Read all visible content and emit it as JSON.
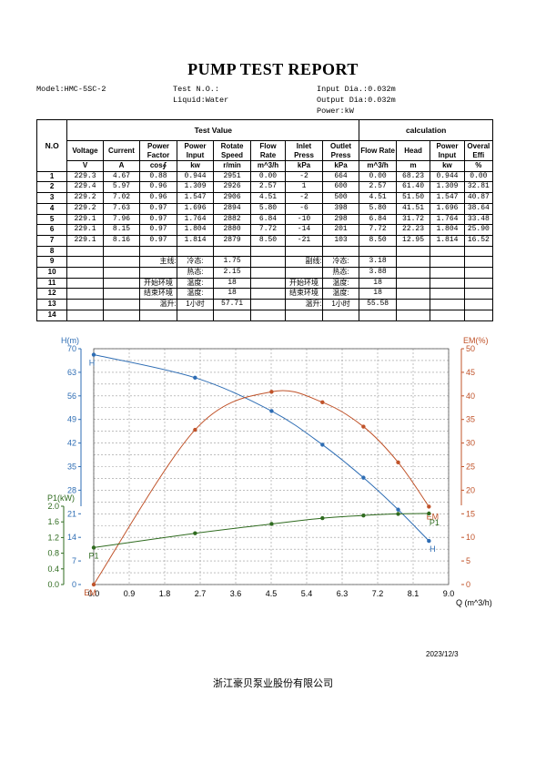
{
  "report": {
    "title": "PUMP TEST REPORT",
    "model": "Model:HMC-5SC-2",
    "test_no": "Test N.O.:",
    "liquid": "Liquid:Water",
    "input_dia": "Input Dia.:0.032m",
    "output_dia": "Output Dia:0.032m",
    "power_unit": "Power:kW"
  },
  "table": {
    "no_header": "N.O",
    "test_value_header": "Test Value",
    "calc_header": "calculation",
    "col_names": [
      "Voltage",
      "Current",
      "Power Factor",
      "Power Input",
      "Rotate Speed",
      "Flow Rate",
      "Inlet Press",
      "Outlet Press",
      "Flow Rate",
      "Head",
      "Power Input",
      "Overal Effi"
    ],
    "col_units": [
      "V",
      "A",
      "cos∮",
      "kw",
      "r/min",
      "m^3/h",
      "kPa",
      "kPa",
      "m^3/h",
      "m",
      "kw",
      "%"
    ],
    "rows": [
      [
        "1",
        "229.3",
        "4.67",
        "0.88",
        "0.944",
        "2951",
        "0.00",
        "-2",
        "664",
        "0.00",
        "68.23",
        "0.944",
        "0.00"
      ],
      [
        "2",
        "229.4",
        "5.97",
        "0.96",
        "1.309",
        "2926",
        "2.57",
        "1",
        "600",
        "2.57",
        "61.40",
        "1.309",
        "32.81"
      ],
      [
        "3",
        "229.2",
        "7.02",
        "0.96",
        "1.547",
        "2906",
        "4.51",
        "-2",
        "500",
        "4.51",
        "51.50",
        "1.547",
        "40.87"
      ],
      [
        "4",
        "229.2",
        "7.63",
        "0.97",
        "1.696",
        "2894",
        "5.80",
        "-6",
        "398",
        "5.80",
        "41.51",
        "1.696",
        "38.64"
      ],
      [
        "5",
        "229.1",
        "7.96",
        "0.97",
        "1.764",
        "2882",
        "6.84",
        "-10",
        "298",
        "6.84",
        "31.72",
        "1.764",
        "33.48"
      ],
      [
        "6",
        "229.1",
        "8.15",
        "0.97",
        "1.804",
        "2880",
        "7.72",
        "-14",
        "201",
        "7.72",
        "22.23",
        "1.804",
        "25.90"
      ],
      [
        "7",
        "229.1",
        "8.16",
        "0.97",
        "1.814",
        "2879",
        "8.50",
        "-21",
        "103",
        "8.50",
        "12.95",
        "1.814",
        "16.52"
      ]
    ],
    "extra_row_numbers": [
      "8",
      "9",
      "10",
      "11",
      "12",
      "13",
      "14"
    ],
    "r9": {
      "main_label": "主线:",
      "cold_label": "冷态:",
      "cold_val": "1.75",
      "sub_label": "副线:",
      "sub_cold_label": "冷态:",
      "sub_cold_val": "3.18"
    },
    "r10": {
      "hot_label": "热态:",
      "hot_val": "2.15",
      "sub_hot_label": "热态:",
      "sub_hot_val": "3.88"
    },
    "r11": {
      "start_env": "开始环境",
      "temp_label": "温度:",
      "temp_val": "18",
      "start_env2": "开始环境",
      "temp_label2": "温度:",
      "temp_val2": "18"
    },
    "r12": {
      "end_env": "结束环境",
      "temp_label": "温度:",
      "temp_val": "18",
      "end_env2": "结束环境",
      "temp_label2": "温度:",
      "temp_val2": "18"
    },
    "r13": {
      "rise_label": "温升:",
      "rise_time": "1小时",
      "rise_val": "57.71",
      "rise_label2": "温升:",
      "rise_time2": "1小时",
      "rise_val2": "55.58"
    }
  },
  "chart_data": {
    "type": "line",
    "xlabel": "Q (m^3/h)",
    "x_ticks": [
      "0.0",
      "0.9",
      "1.8",
      "2.7",
      "3.6",
      "4.5",
      "5.4",
      "6.3",
      "7.2",
      "8.1",
      "9.0"
    ],
    "xlim": [
      0,
      9
    ],
    "axes": {
      "H": {
        "label": "H(m)",
        "ticks": [
          "70",
          "63",
          "56",
          "49",
          "42",
          "35",
          "28",
          "21",
          "14",
          "7",
          "0"
        ],
        "lim": [
          0,
          70
        ],
        "color": "#2e6db4"
      },
      "EM": {
        "label": "EM(%)",
        "ticks": [
          "50",
          "45",
          "40",
          "35",
          "30",
          "25",
          "20",
          "15",
          "10",
          "5",
          "0"
        ],
        "lim": [
          0,
          50
        ],
        "color": "#c0532a"
      },
      "P1": {
        "label": "P1(kW)",
        "ticks": [
          "2.0",
          "1.6",
          "1.2",
          "0.8",
          "0.4",
          "0.0"
        ],
        "lim": [
          0,
          2
        ],
        "color": "#2f6b1f"
      }
    },
    "series": [
      {
        "name": "H",
        "color": "#2e6db4",
        "x": [
          0.0,
          2.57,
          4.51,
          5.8,
          6.84,
          7.72,
          8.5
        ],
        "y": [
          68.23,
          61.4,
          51.5,
          41.51,
          31.72,
          22.23,
          12.95
        ]
      },
      {
        "name": "EM",
        "color": "#c0532a",
        "x": [
          0.0,
          2.57,
          4.51,
          5.8,
          6.84,
          7.72,
          8.5
        ],
        "y": [
          0.0,
          32.81,
          40.87,
          38.64,
          33.48,
          25.9,
          16.52
        ]
      },
      {
        "name": "P1",
        "color": "#2f6b1f",
        "x": [
          0.0,
          2.57,
          4.51,
          5.8,
          6.84,
          7.72,
          8.5
        ],
        "y": [
          0.944,
          1.309,
          1.547,
          1.696,
          1.764,
          1.804,
          1.814
        ]
      }
    ]
  },
  "footer": {
    "date": "2023/12/3",
    "company": "浙江豪贝泵业股份有限公司"
  }
}
